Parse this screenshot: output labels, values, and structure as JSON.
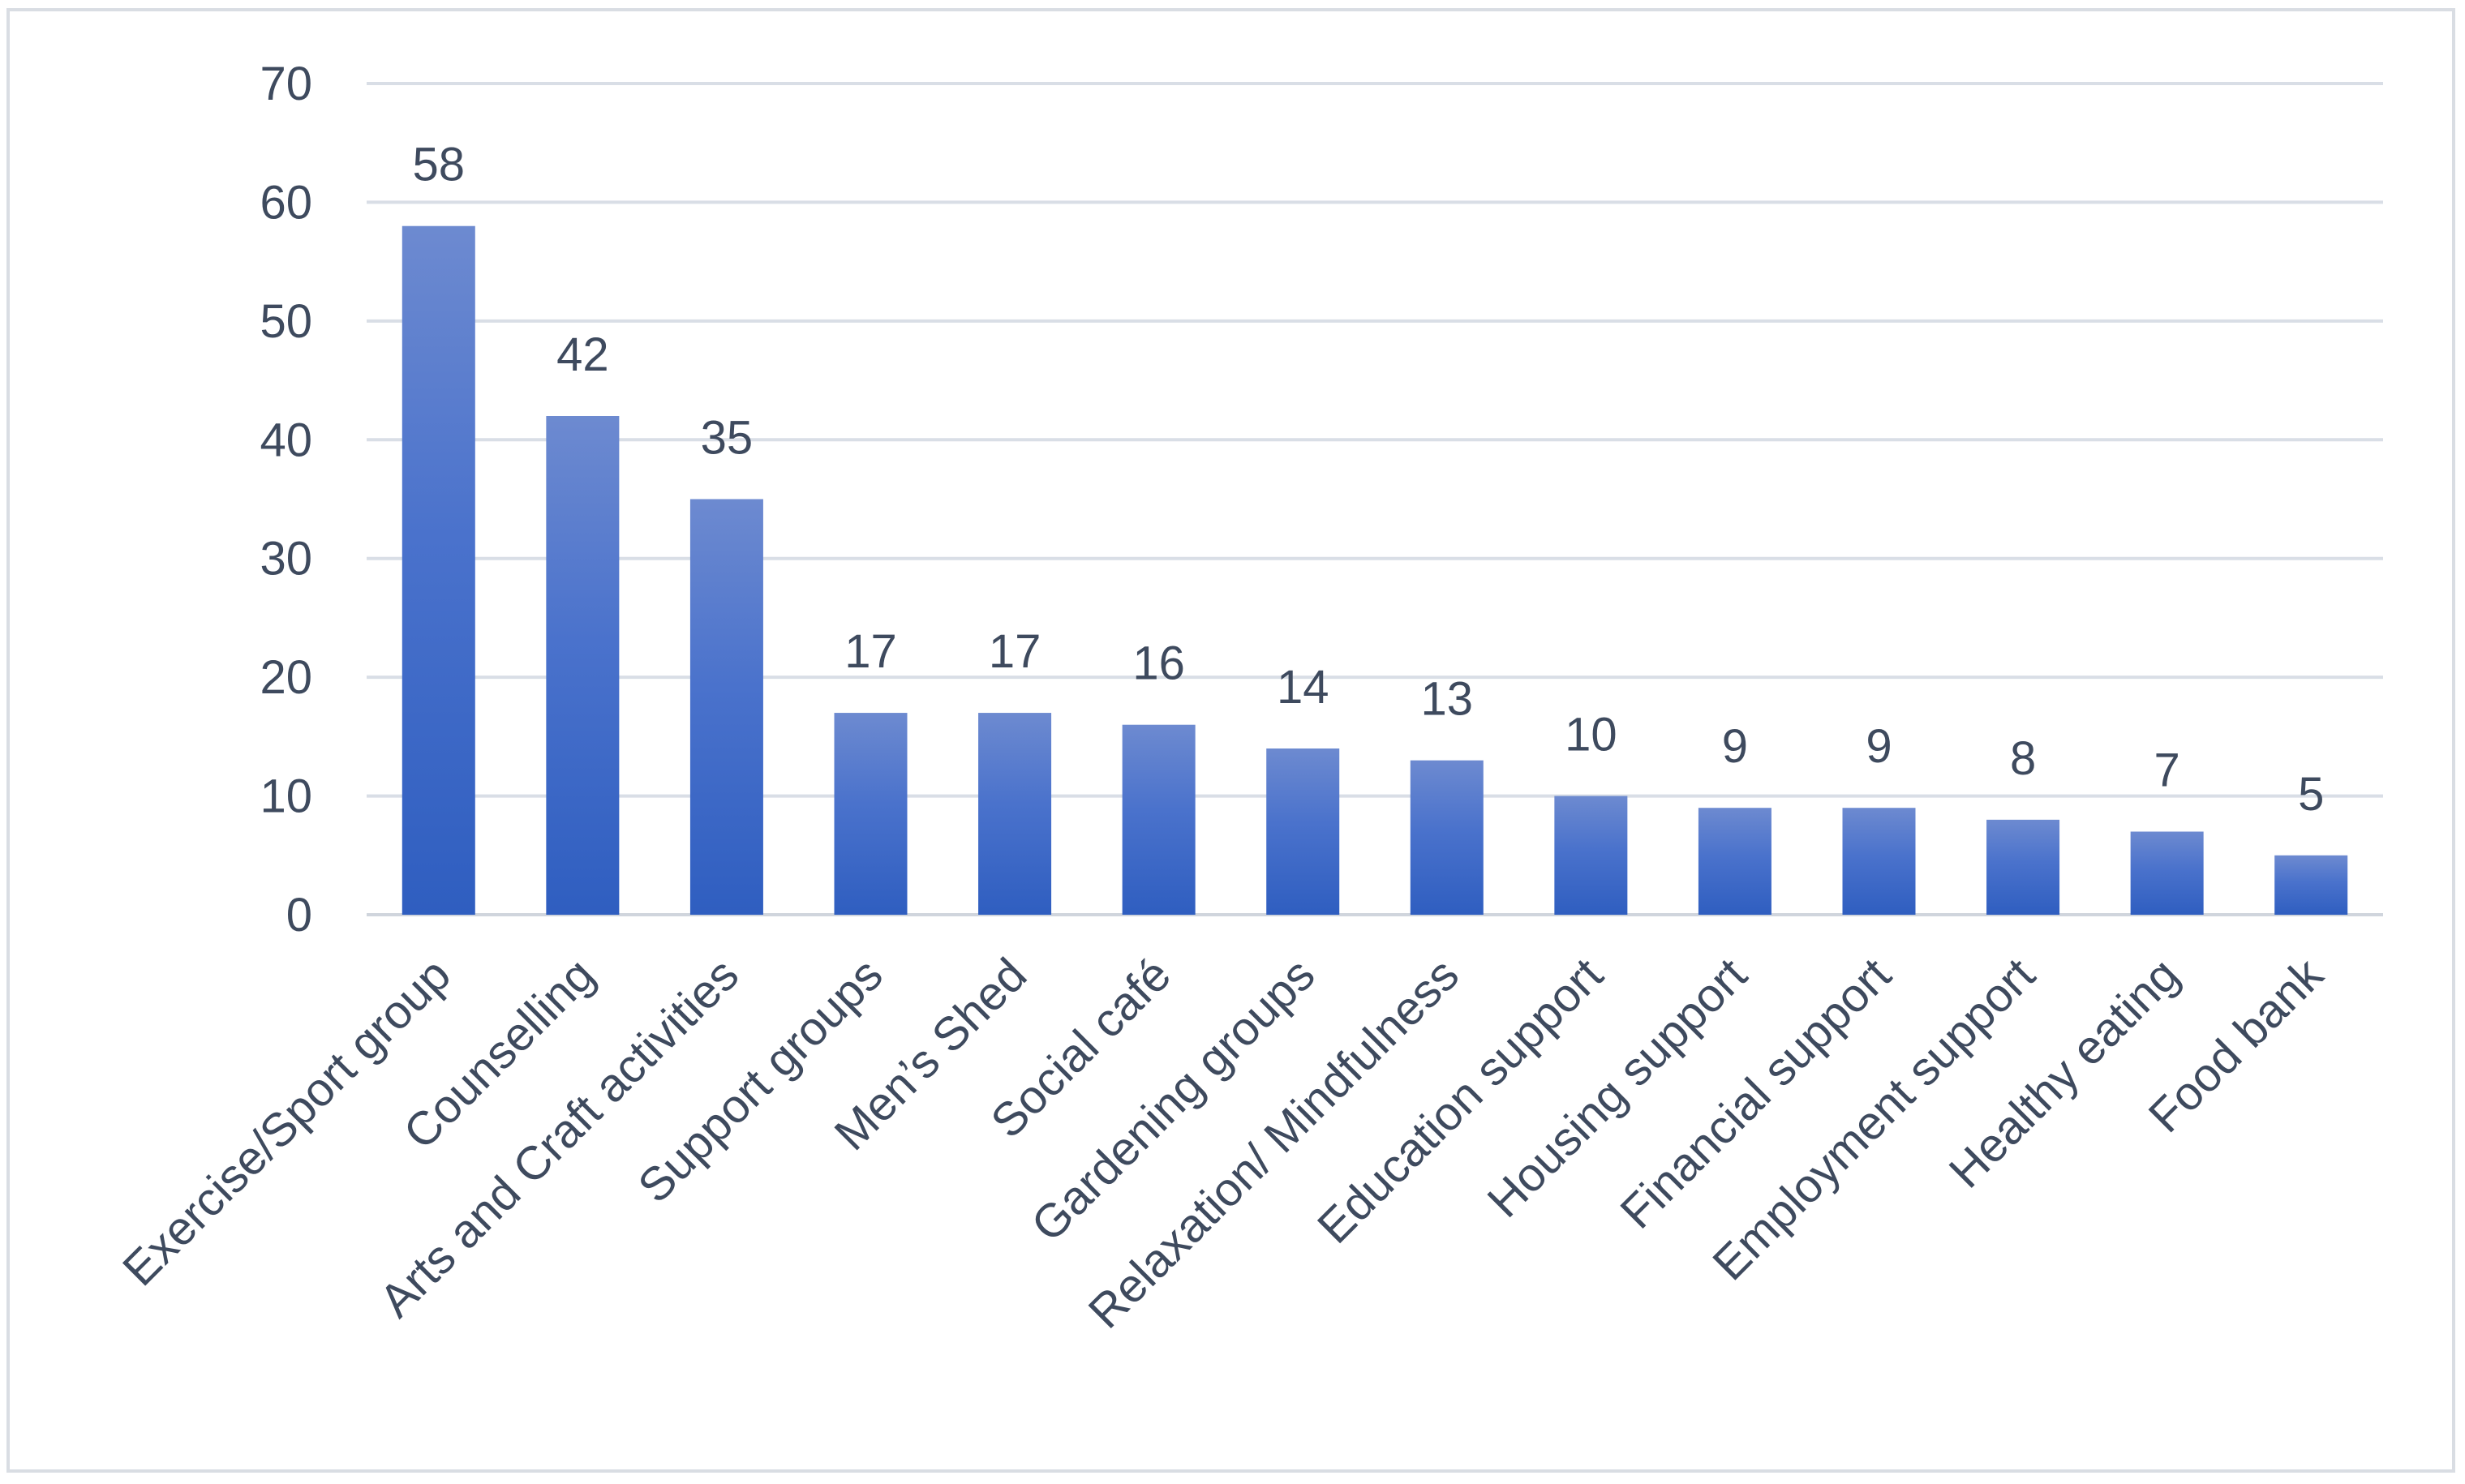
{
  "chart_data": {
    "type": "bar",
    "categories": [
      "Exercise/Sport group",
      "Counselling",
      "Arts and Craft activities",
      "Support groups",
      "Men’s Shed",
      "Social café",
      "Gardening groups",
      "Relaxation/ Mindfulness",
      "Education support",
      "Housing support",
      "Financial support",
      "Employment support",
      "Healthy eating",
      "Food bank"
    ],
    "values": [
      58,
      42,
      35,
      17,
      17,
      16,
      14,
      13,
      10,
      9,
      9,
      8,
      7,
      5
    ],
    "title": "",
    "xlabel": "",
    "ylabel": "",
    "ylim": [
      0,
      70
    ],
    "yticks": [
      0,
      10,
      20,
      30,
      40,
      50,
      60,
      70
    ],
    "grid": true,
    "data_labels": true,
    "legend": "none",
    "colors": {
      "bar_top": "#6d8ad0",
      "bar_bottom": "#2f5ec0",
      "text": "#3e4a5e",
      "grid": "#d9dee6",
      "frame": "#d9dde3"
    }
  }
}
